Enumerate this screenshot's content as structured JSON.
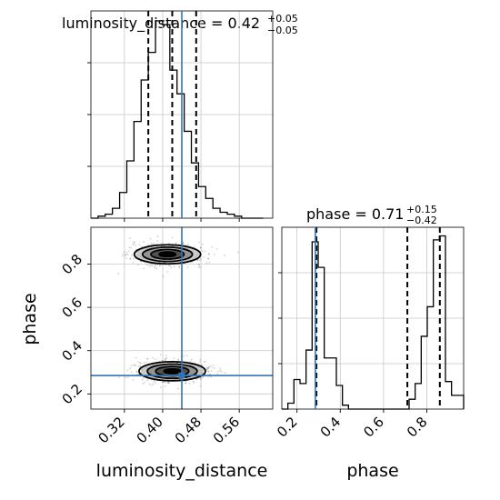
{
  "chart_data": {
    "type": "corner",
    "parameters": [
      "luminosity_distance",
      "phase"
    ],
    "truth": {
      "luminosity_distance": 0.44,
      "phase": 0.285
    },
    "panels": [
      {
        "id": "hist-luminosity-distance",
        "type": "histogram",
        "title": {
          "main": "luminosity_distance = 0.42",
          "sup": "+0.05",
          "sub": "−0.05"
        },
        "x_range": [
          0.25,
          0.63
        ],
        "bin_edges": [
          0.25,
          0.265,
          0.28,
          0.295,
          0.31,
          0.325,
          0.34,
          0.355,
          0.37,
          0.385,
          0.4,
          0.415,
          0.43,
          0.445,
          0.46,
          0.475,
          0.49,
          0.505,
          0.52,
          0.535,
          0.55,
          0.565,
          0.58,
          0.595,
          0.61
        ],
        "counts": [
          0,
          1,
          2,
          5,
          13,
          29,
          49,
          70,
          84,
          100,
          98,
          75,
          63,
          44,
          28,
          16,
          10,
          5,
          3,
          2,
          1,
          0,
          0,
          0
        ],
        "quantiles": [
          0.37,
          0.42,
          0.47
        ],
        "x_ticks": [
          0.32,
          0.4,
          0.48,
          0.56
        ],
        "grid": true
      },
      {
        "id": "hist-phase",
        "type": "histogram",
        "title": {
          "main": "phase = 0.71",
          "sup": "+0.15",
          "sub": "−0.42"
        },
        "x_range": [
          0.13,
          0.97
        ],
        "bin_edges": [
          0.13,
          0.158,
          0.186,
          0.214,
          0.242,
          0.27,
          0.298,
          0.326,
          0.354,
          0.382,
          0.41,
          0.438,
          0.466,
          0.494,
          0.522,
          0.55,
          0.578,
          0.606,
          0.634,
          0.662,
          0.69,
          0.718,
          0.746,
          0.774,
          0.802,
          0.83,
          0.858,
          0.886,
          0.914,
          0.942,
          0.97
        ],
        "counts": [
          0,
          3,
          15,
          13,
          30,
          85,
          72,
          26,
          26,
          12,
          2,
          0,
          0,
          0,
          0,
          0,
          0,
          0,
          0,
          0,
          0,
          5,
          13,
          37,
          52,
          86,
          88,
          14,
          7,
          7
        ],
        "quantiles": [
          0.29,
          0.71,
          0.86
        ],
        "x_ticks": [
          0.2,
          0.4,
          0.6,
          0.8
        ],
        "x_label": "phase",
        "grid": true
      },
      {
        "id": "joint-luminosity-distance-phase",
        "type": "2d-density",
        "x_range": [
          0.25,
          0.63
        ],
        "y_range": [
          0.13,
          0.97
        ],
        "x_ticks": [
          0.32,
          0.4,
          0.48,
          0.56
        ],
        "y_ticks": [
          0.2,
          0.4,
          0.6,
          0.8
        ],
        "x_label": "luminosity_distance",
        "y_label": "phase",
        "modes": [
          {
            "center": [
              0.41,
              0.845
            ],
            "sigma": [
              0.033,
              0.022
            ]
          },
          {
            "center": [
              0.42,
              0.305
            ],
            "sigma": [
              0.033,
              0.022
            ]
          }
        ],
        "grid": true
      }
    ]
  }
}
